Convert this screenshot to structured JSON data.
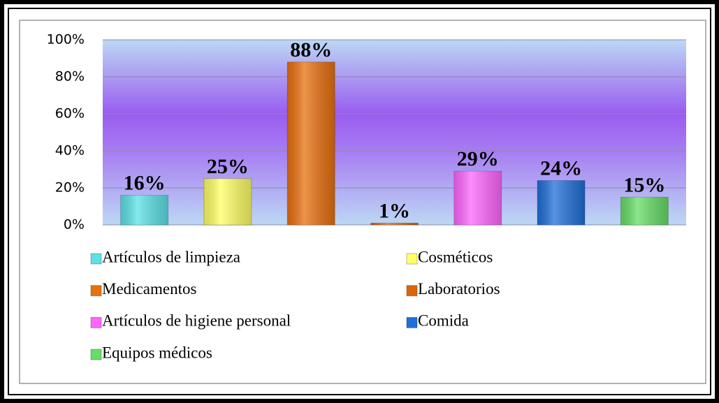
{
  "chart_data": {
    "type": "bar",
    "series": [
      {
        "name": "Artículos de limpieza",
        "color": "#5ce1e6",
        "values": [
          16
        ],
        "value_labels": [
          "16%"
        ]
      },
      {
        "name": "Cosméticos",
        "color": "#ffff66",
        "values": [
          25
        ],
        "value_labels": [
          "25%"
        ]
      },
      {
        "name": "Medicamentos",
        "color": "#e8700e",
        "values": [
          88
        ],
        "value_labels": [
          "88%"
        ]
      },
      {
        "name": "Laboratorios",
        "color": "#d9660c",
        "values": [
          1
        ],
        "value_labels": [
          "1%"
        ]
      },
      {
        "name": "Artículos de higiene personal",
        "color": "#ff66ff",
        "values": [
          29
        ],
        "value_labels": [
          "29%"
        ]
      },
      {
        "name": "Comida",
        "color": "#1f6fd8",
        "values": [
          24
        ],
        "value_labels": [
          "24%"
        ]
      },
      {
        "name": "Equipos médicos",
        "color": "#66dd66",
        "values": [
          15
        ],
        "value_labels": [
          "15%"
        ]
      }
    ],
    "ylim": [
      0,
      100
    ],
    "yticks": [
      {
        "value": 0,
        "label": "0%"
      },
      {
        "value": 20,
        "label": "20%"
      },
      {
        "value": 40,
        "label": "40%"
      },
      {
        "value": 60,
        "label": "60%"
      },
      {
        "value": 80,
        "label": "80%"
      },
      {
        "value": 100,
        "label": "100%"
      }
    ],
    "grid": true,
    "legend": "bottom"
  }
}
